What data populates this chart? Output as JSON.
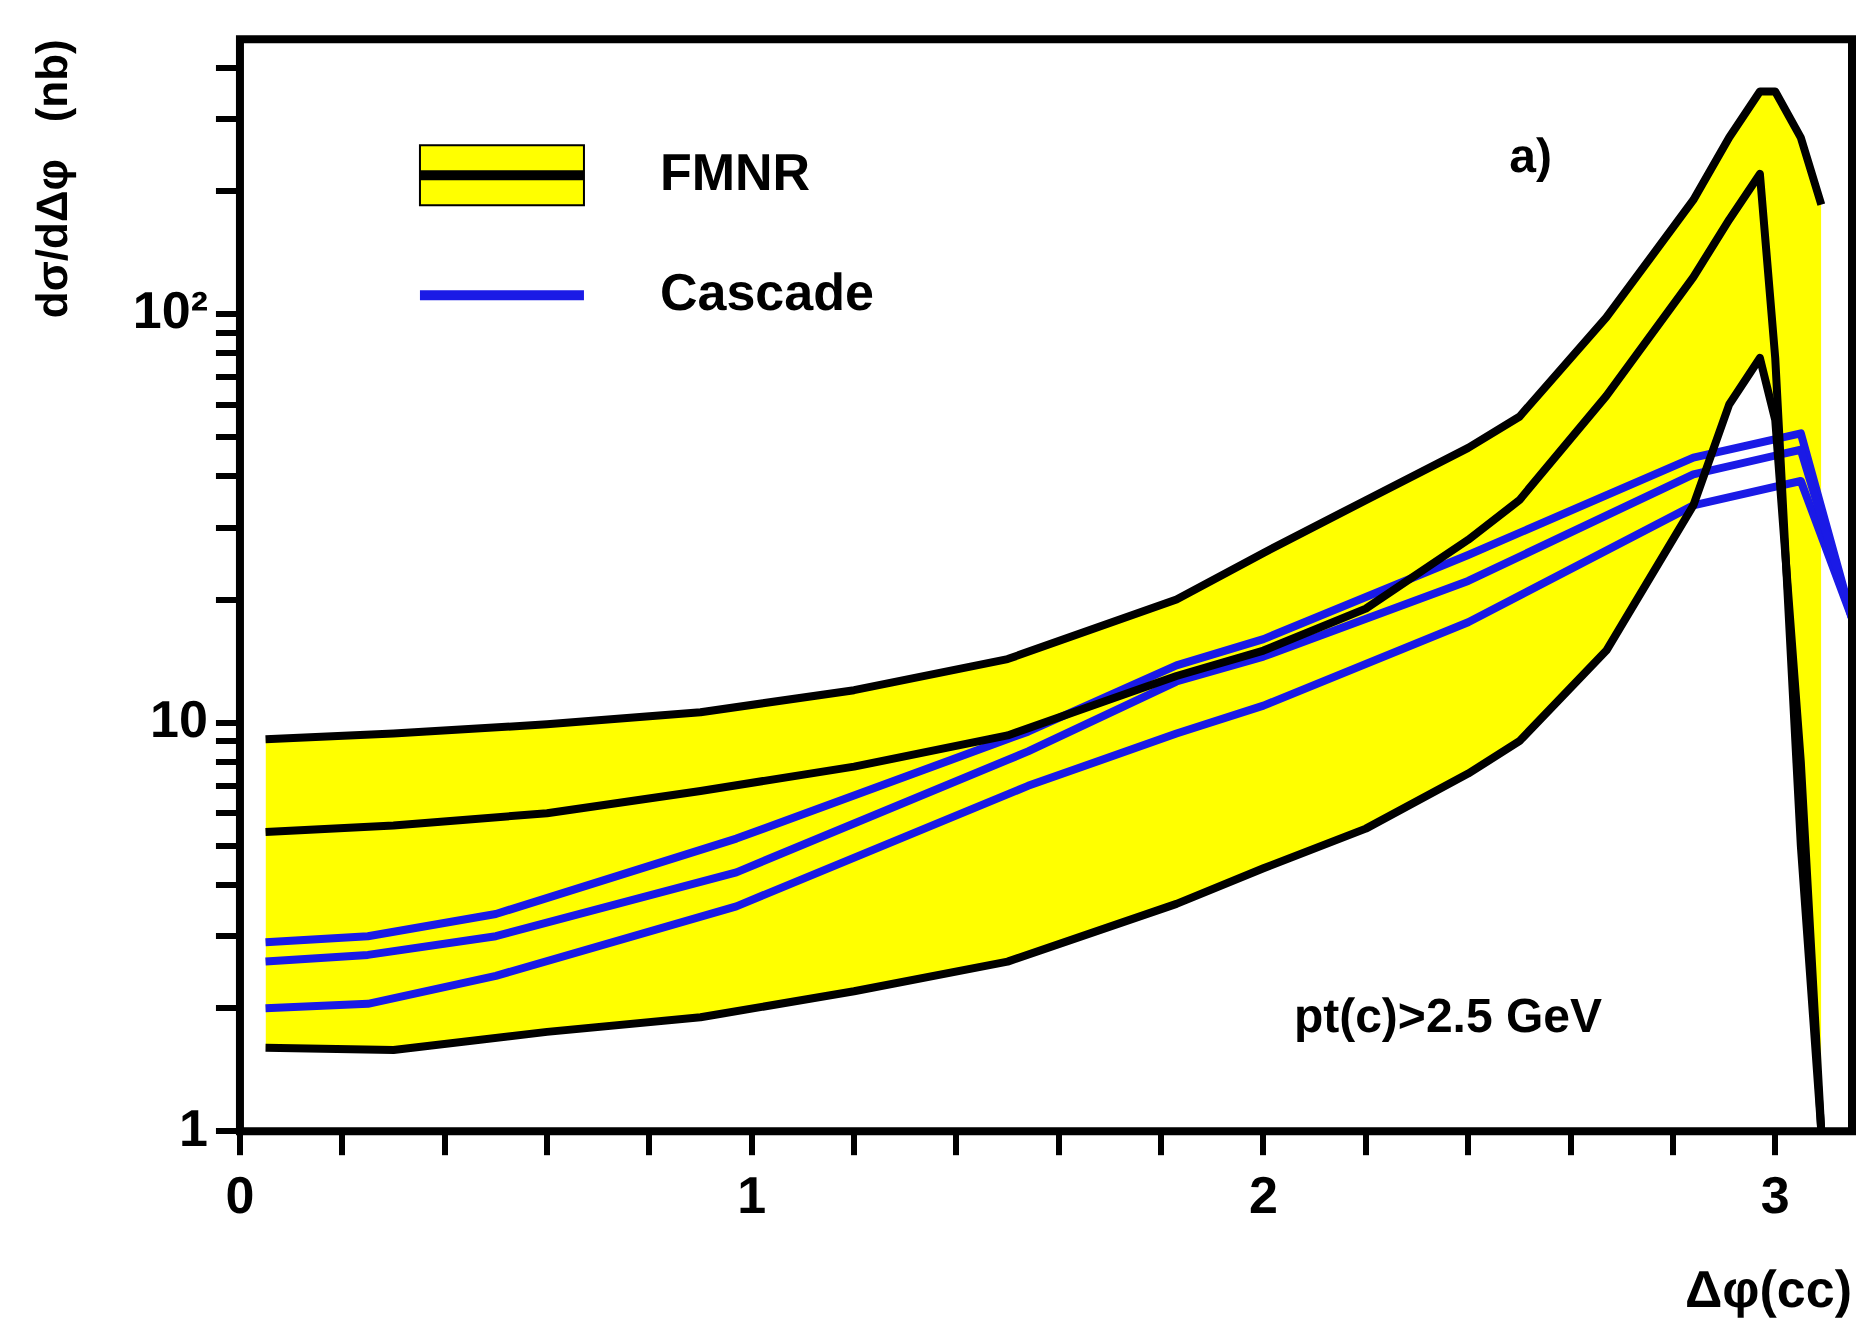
{
  "chart_data": {
    "type": "line",
    "xlabel": "Δφ(cc)",
    "ylabel": "dσ/dΔφ   (nb)",
    "log": "y",
    "grid": false,
    "legend": "top left",
    "marker": "none",
    "line_style": "solid",
    "xlim": [
      0,
      3.15
    ],
    "ylim": [
      1,
      470
    ],
    "xticks": [
      0,
      {
        "value": 0.2,
        "label": null
      },
      {
        "value": 0.4,
        "label": null
      },
      {
        "value": 0.6,
        "label": null
      },
      {
        "value": 0.8,
        "label": null
      },
      1,
      {
        "value": 1.2,
        "label": null
      },
      {
        "value": 1.4,
        "label": null
      },
      {
        "value": 1.6,
        "label": null
      },
      {
        "value": 1.8,
        "label": null
      },
      2,
      {
        "value": 2.2,
        "label": null
      },
      {
        "value": 2.4,
        "label": null
      },
      {
        "value": 2.6,
        "label": null
      },
      {
        "value": 2.8,
        "label": null
      },
      3
    ],
    "yticks": [
      1,
      {
        "value": 2,
        "label": null
      },
      {
        "value": 3,
        "label": null
      },
      {
        "value": 4,
        "label": null
      },
      {
        "value": 5,
        "label": null
      },
      {
        "value": 6,
        "label": null
      },
      {
        "value": 7,
        "label": null
      },
      {
        "value": 8,
        "label": null
      },
      {
        "value": 9,
        "label": null
      },
      10,
      {
        "value": 20,
        "label": null
      },
      {
        "value": 30,
        "label": null
      },
      {
        "value": 40,
        "label": null
      },
      {
        "value": 50,
        "label": null
      },
      {
        "value": 60,
        "label": null
      },
      {
        "value": 70,
        "label": null
      },
      {
        "value": 80,
        "label": null
      },
      {
        "value": 90,
        "label": null
      },
      {
        "value": 100,
        "label": "10²"
      },
      {
        "value": 200,
        "label": null
      },
      {
        "value": 300,
        "label": null
      },
      {
        "value": 400,
        "label": null
      }
    ],
    "series": [
      {
        "name": "FMNR",
        "color": "#000000",
        "x": [
          0.05,
          0.3,
          0.6,
          0.9,
          1.2,
          1.5,
          1.83,
          2.0,
          2.2,
          2.4,
          2.5,
          2.67,
          2.84,
          2.91,
          2.97,
          3.0,
          3.05,
          3.09
        ],
        "values": [
          5.4,
          5.6,
          6.0,
          6.8,
          7.8,
          9.3,
          13,
          15,
          19,
          28,
          35,
          63,
          123,
          170,
          220,
          78,
          5,
          1
        ],
        "lower": [
          1.6,
          1.58,
          1.75,
          1.9,
          2.2,
          2.6,
          3.6,
          4.4,
          5.5,
          7.5,
          9,
          15,
          34,
          60,
          78,
          55,
          8,
          1
        ],
        "upper": [
          9.1,
          9.4,
          9.9,
          10.6,
          12,
          14.3,
          20,
          26,
          35,
          47,
          56,
          98,
          190,
          270,
          350,
          350,
          270,
          185
        ]
      },
      {
        "color": "#000000",
        "x": [
          0.05,
          0.3,
          0.6,
          0.9,
          1.2,
          1.5,
          1.83,
          2.0,
          2.2,
          2.4,
          2.5,
          2.67,
          2.84,
          2.91,
          2.97,
          3.0,
          3.05,
          3.09
        ],
        "values": [
          1.6,
          1.58,
          1.75,
          1.9,
          2.2,
          2.6,
          3.6,
          4.4,
          5.5,
          7.5,
          9,
          15,
          34,
          60,
          78,
          55,
          8,
          1
        ]
      },
      {
        "color": "#000000",
        "x": [
          0.05,
          0.3,
          0.6,
          0.9,
          1.2,
          1.5,
          1.83,
          2.0,
          2.2,
          2.4,
          2.5,
          2.67,
          2.84,
          2.91,
          2.97,
          3.0,
          3.05,
          3.09
        ],
        "values": [
          9.1,
          9.4,
          9.9,
          10.6,
          12,
          14.3,
          20,
          26,
          35,
          47,
          56,
          98,
          190,
          270,
          350,
          350,
          270,
          185
        ]
      },
      {
        "name": "Cascade",
        "color": "#1a1ae6",
        "x": [
          0.05,
          0.25,
          0.5,
          0.97,
          1.54,
          1.83,
          2.0,
          2.4,
          2.84,
          3.05,
          3.15
        ],
        "values": [
          2.6,
          2.7,
          3.0,
          4.3,
          8.5,
          12.6,
          14.5,
          22.2,
          40.5,
          46.5,
          18
        ]
      },
      {
        "color": "#1a1ae6",
        "x": [
          0.05,
          0.25,
          0.5,
          0.97,
          1.54,
          1.83,
          2.0,
          2.4,
          2.84,
          3.05,
          3.15
        ],
        "values": [
          2.9,
          3.0,
          3.4,
          5.2,
          9.5,
          13.8,
          16,
          25.7,
          44.5,
          51,
          18
        ]
      },
      {
        "color": "#1a1ae6",
        "x": [
          0.05,
          0.25,
          0.5,
          0.97,
          1.54,
          1.83,
          2.0,
          2.4,
          2.84,
          3.05,
          3.15
        ],
        "values": [
          2.0,
          2.05,
          2.4,
          3.55,
          7.0,
          9.4,
          11,
          17.6,
          34,
          39,
          18
        ]
      }
    ],
    "annotations": [
      "a)",
      "pt(c)>2.5 GeV"
    ]
  }
}
